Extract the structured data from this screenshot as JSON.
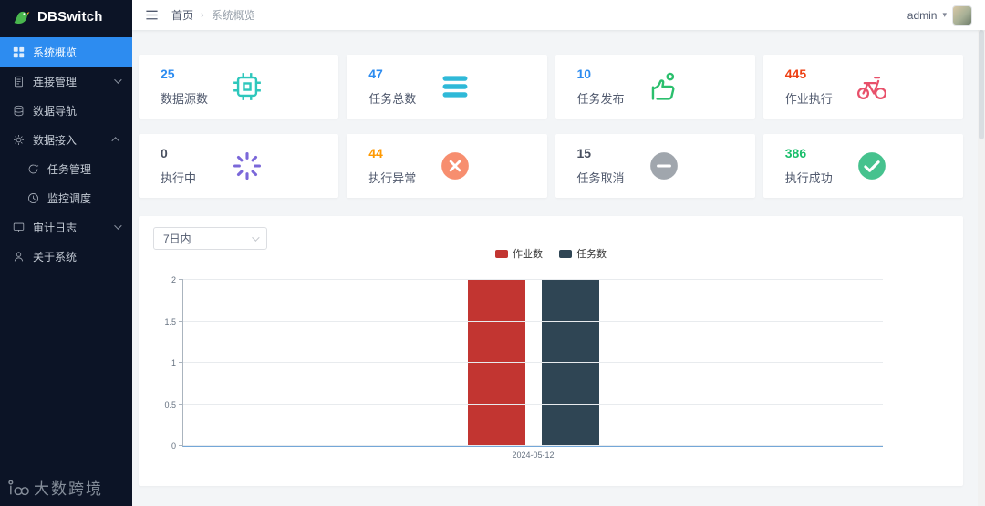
{
  "app": {
    "name": "DBSwitch"
  },
  "topbar": {
    "breadcrumb": {
      "home": "首页",
      "separator": "›",
      "current": "系统概览"
    },
    "user": {
      "name": "admin"
    }
  },
  "sidebar": {
    "items": [
      {
        "label": "系统概览",
        "icon": "grid",
        "active": true
      },
      {
        "label": "连接管理",
        "icon": "doc",
        "chevron": "down"
      },
      {
        "label": "数据导航",
        "icon": "database"
      },
      {
        "label": "数据接入",
        "icon": "gear",
        "chevron": "up",
        "children": [
          {
            "label": "任务管理",
            "icon": "refresh"
          },
          {
            "label": "监控调度",
            "icon": "clock"
          }
        ]
      },
      {
        "label": "审计日志",
        "icon": "monitor",
        "chevron": "down"
      },
      {
        "label": "关于系统",
        "icon": "user"
      }
    ]
  },
  "stats": [
    {
      "value": "25",
      "label": "数据源数",
      "value_color": "#2d8cf0",
      "icon": "chip",
      "icon_color": "#2ec7bc"
    },
    {
      "value": "47",
      "label": "任务总数",
      "value_color": "#2d8cf0",
      "icon": "stack",
      "icon_color": "#2fb9d8"
    },
    {
      "value": "10",
      "label": "任务发布",
      "value_color": "#2d8cf0",
      "icon": "hand-ok",
      "icon_color": "#2bbf6d"
    },
    {
      "value": "445",
      "label": "作业执行",
      "value_color": "#ed4014",
      "icon": "bicycle",
      "icon_color": "#e8506a"
    },
    {
      "value": "0",
      "label": "执行中",
      "value_color": "#495060",
      "icon": "spinner",
      "icon_color": "#7b68d9"
    },
    {
      "value": "44",
      "label": "执行异常",
      "value_color": "#ff9900",
      "icon": "circle-x",
      "icon_color": "#f78e6f"
    },
    {
      "value": "15",
      "label": "任务取消",
      "value_color": "#495060",
      "icon": "circle-minus",
      "icon_color": "#a0a6ad"
    },
    {
      "value": "386",
      "label": "执行成功",
      "value_color": "#19be6b",
      "icon": "circle-check",
      "icon_color": "#46c28e"
    }
  ],
  "chart": {
    "filter_value": "7日内"
  },
  "chart_data": {
    "type": "bar",
    "categories": [
      "2024-05-12"
    ],
    "series": [
      {
        "name": "作业数",
        "color": "#c23531",
        "values": [
          2
        ]
      },
      {
        "name": "任务数",
        "color": "#2f4554",
        "values": [
          2
        ]
      }
    ],
    "xlabel": "",
    "ylabel": "",
    "ylim": [
      0,
      2
    ],
    "yticks": [
      0,
      0.5,
      1,
      1.5,
      2
    ],
    "legend_position": "top",
    "grid": true
  },
  "watermark": {
    "text": "大数跨境"
  }
}
